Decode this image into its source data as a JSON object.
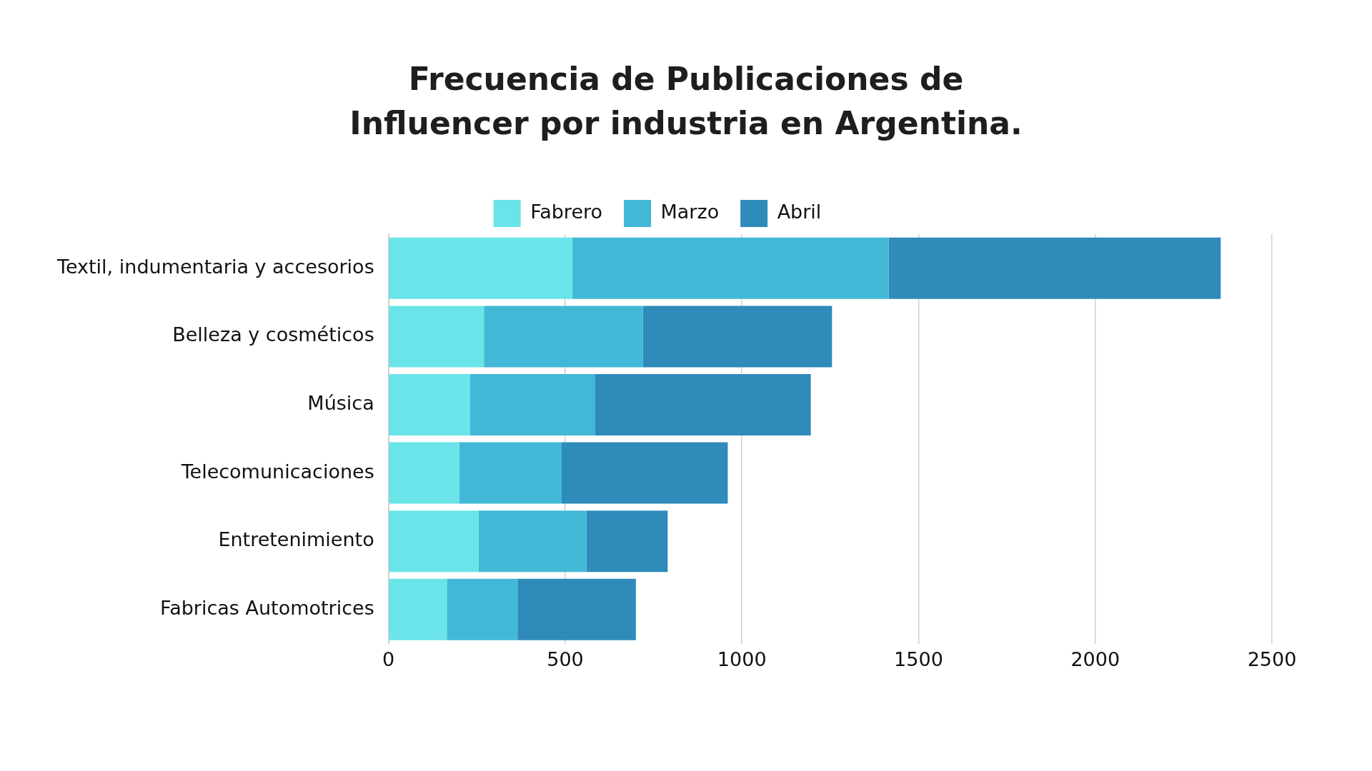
{
  "chart_data": {
    "type": "bar",
    "orientation": "horizontal",
    "stacked": true,
    "title": "Frecuencia de Publicaciones de\nInfluencer por industria en Argentina.",
    "categories": [
      "Textil, indumentaria y accesorios",
      "Belleza y cosméticos",
      "Música",
      "Telecomunicaciones",
      "Entretenimiento",
      "Fabricas Automotrices"
    ],
    "series": [
      {
        "name": "Fabrero",
        "color": "#6ae4e8",
        "values": [
          520,
          270,
          230,
          200,
          255,
          165
        ]
      },
      {
        "name": "Marzo",
        "color": "#42b8d6",
        "values": [
          895,
          450,
          355,
          290,
          305,
          200
        ]
      },
      {
        "name": "Abril",
        "color": "#2e8bba",
        "values": [
          940,
          535,
          610,
          470,
          230,
          335
        ]
      }
    ],
    "xlim": [
      0,
      2500
    ],
    "xticks": [
      0,
      500,
      1000,
      1500,
      2000,
      2500
    ],
    "grid": "x",
    "legend": "top"
  }
}
